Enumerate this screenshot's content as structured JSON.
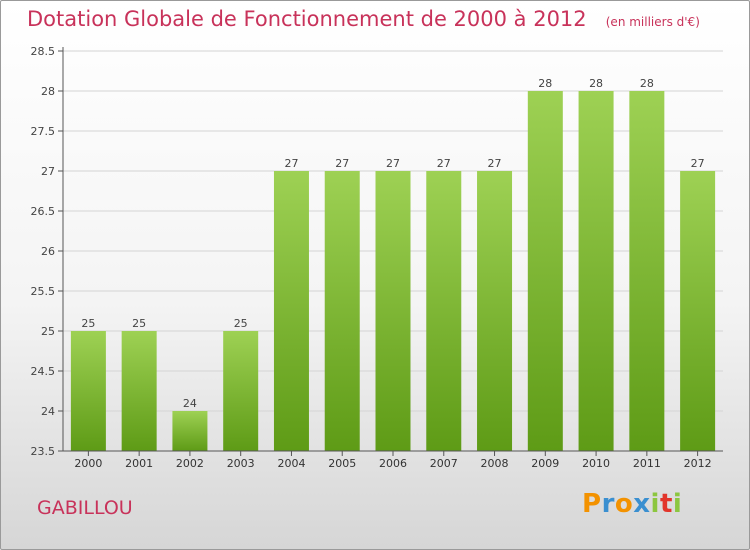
{
  "chart_data": {
    "type": "bar",
    "title": "Dotation Globale de Fonctionnement de 2000 à 2012",
    "unit_note": "(en milliers d'€)",
    "categories": [
      "2000",
      "2001",
      "2002",
      "2003",
      "2004",
      "2005",
      "2006",
      "2007",
      "2008",
      "2009",
      "2010",
      "2011",
      "2012"
    ],
    "values": [
      25,
      25,
      24,
      25,
      27,
      27,
      27,
      27,
      27,
      28,
      28,
      28,
      27
    ],
    "ylim": [
      23.5,
      28.5
    ],
    "yticks": [
      "23.5",
      "24",
      "24.5",
      "25",
      "25.5",
      "26",
      "26.5",
      "27",
      "27.5",
      "28",
      "28.5"
    ],
    "grid": true,
    "bar_color_top": "#9ed154",
    "bar_color_bottom": "#5e9b16"
  },
  "commune": "GABILLOU",
  "brand": {
    "letters": [
      "P",
      "r",
      "o",
      "x",
      "i",
      "t",
      "i"
    ],
    "colors": [
      "#f39200",
      "#3a8fd0",
      "#f39200",
      "#3a8fd0",
      "#8cc63f",
      "#e2352b",
      "#8cc63f"
    ]
  },
  "colors": {
    "title": "#c8325a",
    "axis": "#555555",
    "grid": "#d4d4d4"
  }
}
